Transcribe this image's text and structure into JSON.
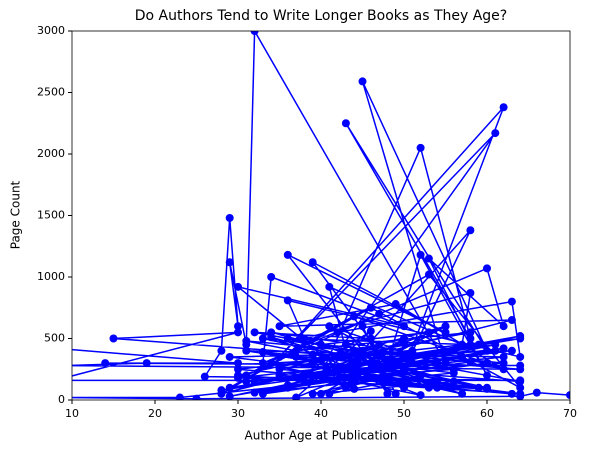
{
  "chart_data": {
    "type": "line",
    "title": "Do Authors Tend to Write Longer Books as They Age?",
    "xlabel": "Author Age at Publication",
    "ylabel": "Page Count",
    "xlim": [
      10,
      70
    ],
    "xticks": [
      10,
      20,
      30,
      40,
      50,
      60,
      70
    ],
    "ylim": [
      0,
      3000
    ],
    "yticks": [
      0,
      500,
      1000,
      1500,
      2000,
      2500,
      3000
    ],
    "x": [
      8,
      30,
      14,
      64,
      19,
      9,
      64,
      15,
      30,
      8,
      64,
      26,
      28,
      29,
      30,
      29,
      31,
      32,
      55,
      45,
      60,
      43,
      58,
      52,
      40,
      61,
      35,
      62,
      50,
      58,
      45,
      36,
      55,
      39,
      48,
      52,
      60,
      53,
      62,
      60,
      33,
      34,
      50,
      30,
      44,
      41,
      57,
      58,
      38,
      36,
      64,
      63,
      42,
      47,
      31,
      53,
      64,
      46,
      28,
      63,
      35,
      49,
      62,
      44,
      29,
      64,
      30,
      63,
      31,
      62,
      32,
      61,
      33,
      60,
      34,
      59,
      35,
      58,
      36,
      57,
      37,
      56,
      38,
      55,
      39,
      54,
      40,
      53,
      41,
      52,
      42,
      51,
      43,
      50,
      44,
      49,
      45,
      48,
      46,
      47,
      30,
      64,
      29,
      63,
      31,
      62,
      33,
      60,
      35,
      58,
      37,
      56,
      39,
      54,
      41,
      52,
      43,
      50,
      45,
      48,
      47,
      46,
      32,
      64,
      34,
      61,
      36,
      59,
      38,
      57,
      40,
      55,
      42,
      53,
      44,
      51,
      28,
      64,
      29,
      62,
      30,
      60,
      31,
      58,
      32,
      56,
      33,
      54,
      34,
      52,
      35,
      50,
      36,
      48,
      37,
      46,
      38,
      44,
      39,
      42,
      23,
      8,
      25,
      64,
      66,
      70
    ],
    "series": [
      {
        "color": "#0000ff",
        "values": [
          420,
          300,
          300,
          280,
          300,
          280,
          250,
          500,
          550,
          160,
          160,
          190,
          400,
          1480,
          600,
          1120,
          450,
          3000,
          300,
          2590,
          400,
          2250,
          500,
          2050,
          200,
          2170,
          350,
          2380,
          250,
          1380,
          400,
          1180,
          550,
          1120,
          300,
          1180,
          200,
          1150,
          600,
          1070,
          300,
          1000,
          600,
          920,
          150,
          920,
          450,
          870,
          500,
          810,
          350,
          800,
          550,
          700,
          200,
          1020,
          100,
          750,
          50,
          650,
          600,
          780,
          250,
          680,
          100,
          500,
          250,
          50,
          400,
          350,
          150,
          450,
          50,
          300,
          550,
          100,
          200,
          450,
          500,
          50,
          350,
          250,
          150,
          600,
          300,
          100,
          450,
          550,
          50,
          200,
          350,
          400,
          100,
          500,
          250,
          50,
          600,
          150,
          300,
          450,
          200,
          50,
          350,
          400,
          150,
          300,
          500,
          100,
          250,
          550,
          400,
          150,
          50,
          300,
          600,
          200,
          450,
          100,
          350,
          50,
          250,
          500,
          550,
          150,
          300,
          400,
          100,
          450,
          200,
          350,
          50,
          600,
          250,
          100,
          400,
          300,
          80,
          520,
          30,
          420,
          180,
          90,
          480,
          310,
          60,
          220,
          390,
          140,
          510,
          40,
          270,
          460,
          120,
          330,
          20,
          560,
          210,
          90,
          370,
          160,
          20,
          20,
          10,
          30,
          60,
          40
        ]
      }
    ]
  }
}
